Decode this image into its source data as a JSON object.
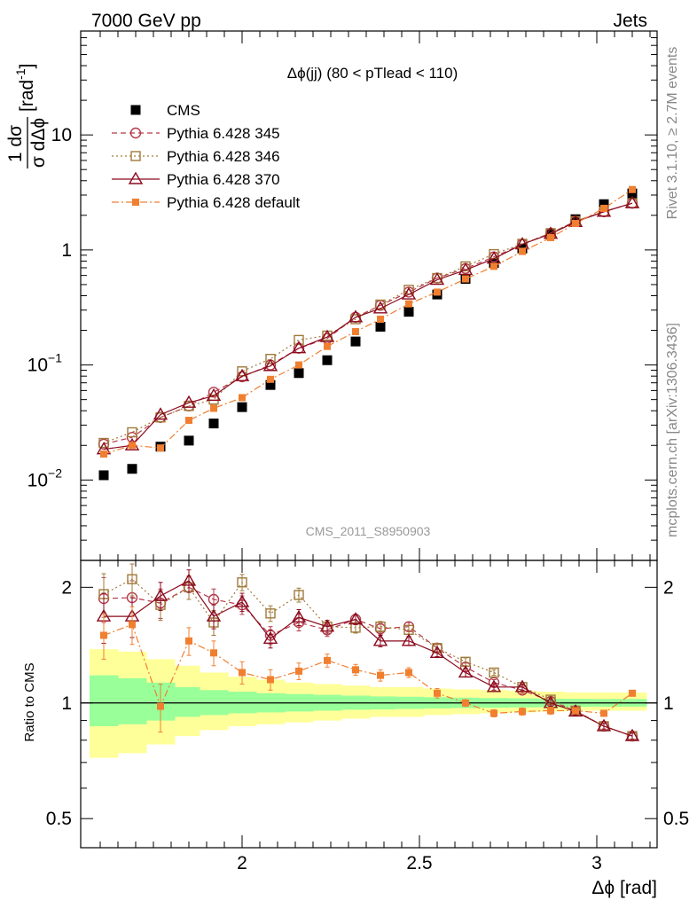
{
  "header": {
    "left": "7000 GeV pp",
    "right": "Jets"
  },
  "side": {
    "rivet": "Rivet 3.1.10, ≥ 2.7M events",
    "mcplots": "mcplots.cern.ch [arXiv:1306.3436]"
  },
  "watermark": "CMS_2011_S8950903",
  "chart_data": [
    {
      "type": "scatter",
      "title": "Δϕ(jj) (80 < pTlead <  110)",
      "ylabel_top": "1  dσ",
      "ylabel_bottom": "σ dΔϕ",
      "ylabel_unit": "[rad",
      "ylabel_unit_sup": "-1",
      "ylabel_close": "]",
      "ylog": true,
      "ylim": [
        0.002,
        80
      ],
      "xlim": [
        1.545,
        3.17
      ],
      "yticks": [
        {
          "v": 0.01,
          "base": "10",
          "exp": "−2"
        },
        {
          "v": 0.1,
          "base": "10",
          "exp": "−1"
        },
        {
          "v": 1,
          "base": "1",
          "exp": ""
        },
        {
          "v": 10,
          "base": "10",
          "exp": ""
        }
      ],
      "legend_position": "top-left",
      "x": [
        1.61,
        1.69,
        1.77,
        1.85,
        1.92,
        2.0,
        2.08,
        2.16,
        2.24,
        2.32,
        2.39,
        2.47,
        2.55,
        2.63,
        2.71,
        2.79,
        2.87,
        2.94,
        3.02,
        3.1
      ],
      "series": [
        {
          "name": "CMS",
          "color": "#000000",
          "marker": "filled-square",
          "line": "none",
          "values": [
            0.011,
            0.0125,
            0.0195,
            0.022,
            0.031,
            0.043,
            0.067,
            0.085,
            0.11,
            0.16,
            0.215,
            0.29,
            0.41,
            0.56,
            0.77,
            1.03,
            1.38,
            1.85,
            2.5,
            3.1
          ]
        },
        {
          "name": "Pythia 6.428 345",
          "color": "#b53a4a",
          "marker": "open-circle",
          "line": "dashed",
          "values": [
            0.0205,
            0.0235,
            0.035,
            0.044,
            0.058,
            0.079,
            0.1,
            0.14,
            0.17,
            0.26,
            0.33,
            0.43,
            0.57,
            0.69,
            0.87,
            1.12,
            1.4,
            1.78,
            2.15,
            2.55
          ]
        },
        {
          "name": "Pythia 6.428 346",
          "color": "#a07a3a",
          "marker": "open-square",
          "line": "dotted",
          "values": [
            0.021,
            0.026,
            0.035,
            0.044,
            0.05,
            0.088,
            0.113,
            0.165,
            0.18,
            0.25,
            0.335,
            0.45,
            0.57,
            0.72,
            0.92,
            1.13,
            1.4,
            1.78,
            2.15,
            2.55
          ]
        },
        {
          "name": "Pythia 6.428 370",
          "color": "#8b0a1e",
          "marker": "open-triangle",
          "line": "solid",
          "values": [
            0.0185,
            0.02,
            0.037,
            0.047,
            0.054,
            0.08,
            0.098,
            0.14,
            0.175,
            0.26,
            0.31,
            0.41,
            0.55,
            0.67,
            0.84,
            1.12,
            1.38,
            1.75,
            2.15,
            2.55
          ]
        },
        {
          "name": "Pythia 6.428 default",
          "color": "#f07f30",
          "marker": "filled-small-square",
          "line": "dashdot",
          "values": [
            0.0168,
            0.02,
            0.019,
            0.033,
            0.042,
            0.052,
            0.075,
            0.1,
            0.145,
            0.195,
            0.25,
            0.34,
            0.43,
            0.56,
            0.72,
            0.97,
            1.28,
            1.7,
            2.3,
            3.35
          ]
        }
      ]
    },
    {
      "type": "scatter",
      "ylabel": "Ratio to CMS",
      "xlabel": "Δϕ [rad]",
      "ylog": true,
      "ylim": [
        0.42,
        2.35
      ],
      "xlim": [
        1.545,
        3.17
      ],
      "xticks": [
        {
          "v": 2,
          "label": "2"
        },
        {
          "v": 2.5,
          "label": "2.5"
        },
        {
          "v": 3,
          "label": "3"
        }
      ],
      "yticks": [
        {
          "v": 0.5,
          "label": "0.5"
        },
        {
          "v": 1,
          "label": "1"
        },
        {
          "v": 2,
          "label": "2"
        }
      ],
      "x": [
        1.61,
        1.69,
        1.77,
        1.85,
        1.92,
        2.0,
        2.08,
        2.16,
        2.24,
        2.32,
        2.39,
        2.47,
        2.55,
        2.63,
        2.71,
        2.79,
        2.87,
        2.94,
        3.02,
        3.1
      ],
      "bands": {
        "edges": [
          1.57,
          1.65,
          1.73,
          1.81,
          1.88,
          1.96,
          2.04,
          2.12,
          2.2,
          2.28,
          2.36,
          2.43,
          2.51,
          2.59,
          2.67,
          2.75,
          2.83,
          2.91,
          2.98,
          3.06,
          3.14
        ],
        "yellow": {
          "color": "#ffff99",
          "low": [
            0.72,
            0.74,
            0.78,
            0.82,
            0.85,
            0.87,
            0.88,
            0.89,
            0.9,
            0.91,
            0.92,
            0.92,
            0.93,
            0.935,
            0.94,
            0.945,
            0.95,
            0.955,
            0.955,
            0.955
          ],
          "high": [
            1.38,
            1.36,
            1.3,
            1.25,
            1.2,
            1.17,
            1.15,
            1.13,
            1.12,
            1.11,
            1.1,
            1.1,
            1.09,
            1.085,
            1.08,
            1.075,
            1.07,
            1.065,
            1.065,
            1.065
          ]
        },
        "green": {
          "color": "#99ff99",
          "low": [
            0.87,
            0.88,
            0.9,
            0.92,
            0.93,
            0.94,
            0.945,
            0.95,
            0.955,
            0.96,
            0.962,
            0.965,
            0.968,
            0.97,
            0.972,
            0.974,
            0.975,
            0.977,
            0.978,
            0.978
          ],
          "high": [
            1.18,
            1.16,
            1.13,
            1.1,
            1.08,
            1.07,
            1.06,
            1.055,
            1.05,
            1.045,
            1.04,
            1.038,
            1.035,
            1.032,
            1.03,
            1.028,
            1.026,
            1.025,
            1.024,
            1.024
          ]
        }
      },
      "series": [
        {
          "name": "Pythia 6.428 345",
          "color": "#b53a4a",
          "marker": "open-circle",
          "line": "dashed",
          "values": [
            1.87,
            1.88,
            1.82,
            2.0,
            1.86,
            1.8,
            1.5,
            1.62,
            1.55,
            1.65,
            1.56,
            1.58,
            1.39,
            1.24,
            1.13,
            1.08,
            1.01,
            0.955,
            0.87,
            0.82
          ],
          "err": [
            0.25,
            0.2,
            0.16,
            0.14,
            0.12,
            0.1,
            0.08,
            0.08,
            0.06,
            0.05,
            0.05,
            0.04,
            0.03,
            0.03,
            0.02,
            0.02,
            0.02,
            0.02,
            0.015,
            0.015
          ]
        },
        {
          "name": "Pythia 6.428 346",
          "color": "#a07a3a",
          "marker": "open-square",
          "line": "dotted",
          "values": [
            1.92,
            2.1,
            1.8,
            2.0,
            1.62,
            2.06,
            1.71,
            1.91,
            1.58,
            1.57,
            1.58,
            1.55,
            1.39,
            1.28,
            1.2,
            1.1,
            1.02,
            0.955,
            0.87,
            0.82
          ],
          "err": [
            0.25,
            0.2,
            0.16,
            0.14,
            0.12,
            0.1,
            0.08,
            0.08,
            0.06,
            0.05,
            0.05,
            0.04,
            0.03,
            0.03,
            0.02,
            0.02,
            0.02,
            0.02,
            0.015,
            0.015
          ]
        },
        {
          "name": "Pythia 6.428 370",
          "color": "#8b0a1e",
          "marker": "open-triangle",
          "line": "solid",
          "values": [
            1.68,
            1.68,
            1.9,
            2.08,
            1.68,
            1.83,
            1.47,
            1.67,
            1.58,
            1.65,
            1.45,
            1.45,
            1.35,
            1.2,
            1.1,
            1.1,
            1.0,
            0.95,
            0.87,
            0.82
          ],
          "err": [
            0.25,
            0.2,
            0.16,
            0.14,
            0.12,
            0.1,
            0.08,
            0.08,
            0.06,
            0.05,
            0.05,
            0.04,
            0.03,
            0.03,
            0.02,
            0.02,
            0.02,
            0.02,
            0.015,
            0.015
          ]
        },
        {
          "name": "Pythia 6.428 default",
          "color": "#f07f30",
          "marker": "filled-small-square",
          "line": "dashdot",
          "values": [
            1.5,
            1.6,
            0.98,
            1.45,
            1.35,
            1.2,
            1.15,
            1.21,
            1.29,
            1.22,
            1.18,
            1.2,
            1.06,
            1.0,
            0.94,
            0.95,
            0.955,
            0.955,
            0.94,
            1.06
          ],
          "err": [
            0.2,
            0.18,
            0.14,
            0.12,
            0.1,
            0.08,
            0.07,
            0.06,
            0.05,
            0.04,
            0.04,
            0.035,
            0.03,
            0.02,
            0.02,
            0.02,
            0.02,
            0.015,
            0.015,
            0.015
          ]
        }
      ]
    }
  ]
}
